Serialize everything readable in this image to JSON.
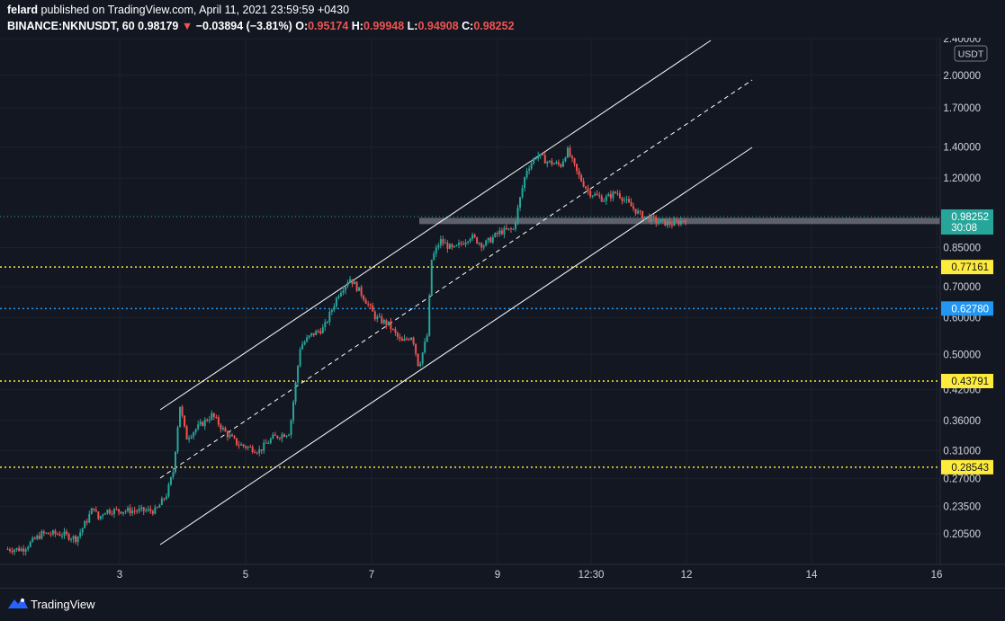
{
  "header": {
    "author": "felard",
    "published_text": "published on TradingView.com, April 11, 2021 23:59:59 +0430",
    "symbol": "BINANCE:NKNUSDT, 60",
    "last_price": "0.98179",
    "change_arrow": "▼",
    "change": "−0.03894 (−3.81%)",
    "o_label": "O:",
    "o_value": "0.95174",
    "h_label": "H:",
    "h_value": "0.99948",
    "l_label": "L:",
    "l_value": "0.94908",
    "c_label": "C:",
    "c_value": "0.98252"
  },
  "footer": {
    "brand": "TradingView"
  },
  "chart_data": {
    "type": "candlestick",
    "currency_label": "USDT",
    "y_scale": "log",
    "price_ticks": [
      "2.40000",
      "2.00000",
      "1.70000",
      "1.40000",
      "1.20000",
      "0.85000",
      "0.70000",
      "0.60000",
      "0.50000",
      "0.42000",
      "0.36000",
      "0.31000",
      "0.27000",
      "0.23500",
      "0.20500"
    ],
    "x_ticks": [
      "3",
      "5",
      "7",
      "9",
      "12:30",
      "12",
      "14",
      "16"
    ],
    "price_tag": {
      "value": "0.98252",
      "countdown": "30:08",
      "color": "#26a69a"
    },
    "horizontal_levels": [
      {
        "value": "0.77161",
        "color": "#ffeb3b"
      },
      {
        "value": "0.62780",
        "color": "#2196f3"
      },
      {
        "value": "0.43791",
        "color": "#ffeb3b"
      },
      {
        "value": "0.28543",
        "color": "#ffeb3b"
      }
    ],
    "support_zone": {
      "from": 0.955,
      "to": 0.985
    },
    "colors": {
      "up": "#26a69a",
      "down": "#ef5350",
      "background": "#131722",
      "channel": "#ffffff"
    },
    "price_path": [
      {
        "t": 0,
        "p": 0.19
      },
      {
        "t": 8,
        "p": 0.19
      },
      {
        "t": 14,
        "p": 0.2
      },
      {
        "t": 17,
        "p": 0.205
      },
      {
        "t": 26,
        "p": 0.205
      },
      {
        "t": 33,
        "p": 0.2
      },
      {
        "t": 38,
        "p": 0.22
      },
      {
        "t": 41,
        "p": 0.235
      },
      {
        "t": 43,
        "p": 0.22
      },
      {
        "t": 46,
        "p": 0.23
      },
      {
        "t": 58,
        "p": 0.23
      },
      {
        "t": 70,
        "p": 0.23
      },
      {
        "t": 75,
        "p": 0.25
      },
      {
        "t": 78,
        "p": 0.28
      },
      {
        "t": 81,
        "p": 0.39
      },
      {
        "t": 84,
        "p": 0.33
      },
      {
        "t": 90,
        "p": 0.35
      },
      {
        "t": 96,
        "p": 0.37
      },
      {
        "t": 102,
        "p": 0.34
      },
      {
        "t": 108,
        "p": 0.32
      },
      {
        "t": 118,
        "p": 0.31
      },
      {
        "t": 124,
        "p": 0.33
      },
      {
        "t": 132,
        "p": 0.34
      },
      {
        "t": 137,
        "p": 0.52
      },
      {
        "t": 142,
        "p": 0.55
      },
      {
        "t": 148,
        "p": 0.57
      },
      {
        "t": 155,
        "p": 0.68
      },
      {
        "t": 160,
        "p": 0.73
      },
      {
        "t": 166,
        "p": 0.67
      },
      {
        "t": 172,
        "p": 0.6
      },
      {
        "t": 178,
        "p": 0.58
      },
      {
        "t": 184,
        "p": 0.53
      },
      {
        "t": 189,
        "p": 0.55
      },
      {
        "t": 192,
        "p": 0.47
      },
      {
        "t": 196,
        "p": 0.55
      },
      {
        "t": 198,
        "p": 0.8
      },
      {
        "t": 202,
        "p": 0.88
      },
      {
        "t": 208,
        "p": 0.84
      },
      {
        "t": 216,
        "p": 0.9
      },
      {
        "t": 222,
        "p": 0.86
      },
      {
        "t": 230,
        "p": 0.92
      },
      {
        "t": 236,
        "p": 0.93
      },
      {
        "t": 242,
        "p": 1.25
      },
      {
        "t": 247,
        "p": 1.35
      },
      {
        "t": 252,
        "p": 1.3
      },
      {
        "t": 258,
        "p": 1.28
      },
      {
        "t": 261,
        "p": 1.38
      },
      {
        "t": 266,
        "p": 1.22
      },
      {
        "t": 271,
        "p": 1.12
      },
      {
        "t": 278,
        "p": 1.08
      },
      {
        "t": 284,
        "p": 1.12
      },
      {
        "t": 290,
        "p": 1.05
      },
      {
        "t": 295,
        "p": 1.0
      },
      {
        "t": 302,
        "p": 0.97
      },
      {
        "t": 310,
        "p": 0.955
      },
      {
        "t": 314,
        "p": 0.97
      },
      {
        "t": 316,
        "p": 0.982
      }
    ]
  }
}
